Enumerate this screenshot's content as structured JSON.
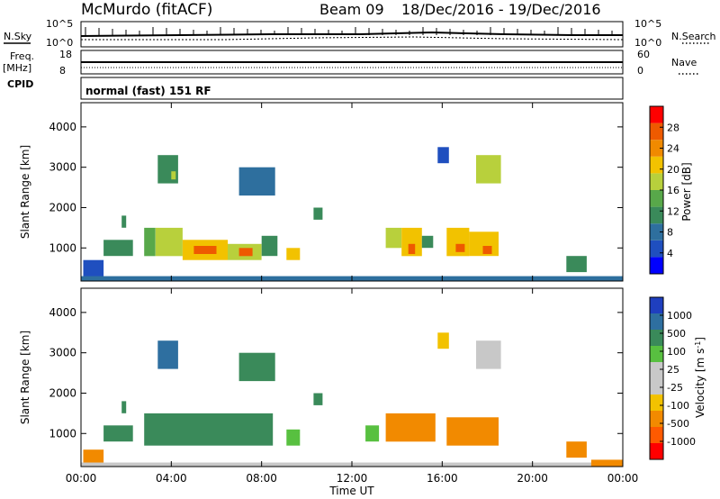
{
  "header": {
    "station": "McMurdo (fitACF)",
    "beam": "Beam 09",
    "date_range": "18/Dec/2016 - 19/Dec/2016"
  },
  "noise_panel": {
    "left_label": "N.Sky",
    "left_top": "10^5",
    "left_bottom": "10^0",
    "right_top": "10^5",
    "right_bottom": "10^0",
    "right_label": "N.Search"
  },
  "freq_panel": {
    "left_label_line1": "Freq.",
    "left_label_line2": "[MHz]",
    "left_top": "18",
    "left_bottom": "8",
    "right_top": "60",
    "right_bottom": "0",
    "right_label": "Nave"
  },
  "cpid_panel": {
    "label": "CPID",
    "mode": "normal (fast) 151 RF"
  },
  "colors": {
    "power_scale": [
      "#0000ff",
      "#1f4fbf",
      "#2e6f9e",
      "#3a8a5a",
      "#58a84a",
      "#b8d03c",
      "#f2c200",
      "#f08a00",
      "#ee5a00",
      "#ff0000"
    ],
    "velocity_scale": [
      "#ff0000",
      "#ff5a00",
      "#f28a00",
      "#f2c200",
      "#c8c8c8",
      "#c8c8c8",
      "#58c040",
      "#3a8a5a",
      "#2e6fa0",
      "#1f3fbf"
    ]
  },
  "chart_data": [
    {
      "type": "heatmap",
      "panel": "power",
      "ylabel": "Slant Range [km]",
      "xlabel": "",
      "yticks": [
        "1000",
        "2000",
        "3000",
        "4000"
      ],
      "ylim": [
        180,
        4600
      ],
      "xlim": [
        "00:00",
        "00:00"
      ],
      "colorbar_label": "Power [dB]",
      "colorbar_ticks": [
        "4",
        "8",
        "12",
        "16",
        "20",
        "24",
        "28"
      ],
      "colorbar_range": [
        0,
        32
      ],
      "cells": [
        {
          "t0": 0.1,
          "t1": 1.0,
          "r0": 200,
          "r1": 700,
          "value": 6
        },
        {
          "t0": 0.0,
          "t1": 24.0,
          "r0": 180,
          "r1": 300,
          "value": 8
        },
        {
          "t0": 1.0,
          "t1": 2.3,
          "r0": 800,
          "r1": 1200,
          "value": 10
        },
        {
          "t0": 1.8,
          "t1": 2.0,
          "r0": 1500,
          "r1": 1800,
          "value": 10
        },
        {
          "t0": 2.8,
          "t1": 3.3,
          "r0": 800,
          "r1": 1500,
          "value": 14
        },
        {
          "t0": 3.3,
          "t1": 4.5,
          "r0": 800,
          "r1": 1500,
          "value": 18
        },
        {
          "t0": 4.5,
          "t1": 6.5,
          "r0": 700,
          "r1": 1200,
          "value": 22
        },
        {
          "t0": 5.0,
          "t1": 6.0,
          "r0": 850,
          "r1": 1050,
          "value": 28
        },
        {
          "t0": 6.5,
          "t1": 8.0,
          "r0": 700,
          "r1": 1100,
          "value": 16
        },
        {
          "t0": 7.0,
          "t1": 7.6,
          "r0": 800,
          "r1": 1000,
          "value": 26
        },
        {
          "t0": 8.0,
          "t1": 8.7,
          "r0": 800,
          "r1": 1300,
          "value": 12
        },
        {
          "t0": 9.1,
          "t1": 9.7,
          "r0": 700,
          "r1": 1000,
          "value": 20
        },
        {
          "t0": 10.3,
          "t1": 10.7,
          "r0": 1700,
          "r1": 2000,
          "value": 12
        },
        {
          "t0": 3.4,
          "t1": 4.3,
          "r0": 2600,
          "r1": 3300,
          "value": 10
        },
        {
          "t0": 4.0,
          "t1": 4.2,
          "r0": 2700,
          "r1": 2900,
          "value": 16
        },
        {
          "t0": 7.0,
          "t1": 8.6,
          "r0": 2300,
          "r1": 3000,
          "value": 9
        },
        {
          "t0": 13.5,
          "t1": 14.2,
          "r0": 1000,
          "r1": 1500,
          "value": 16
        },
        {
          "t0": 14.2,
          "t1": 15.1,
          "r0": 800,
          "r1": 1500,
          "value": 22
        },
        {
          "t0": 14.5,
          "t1": 14.8,
          "r0": 850,
          "r1": 1100,
          "value": 28
        },
        {
          "t0": 15.1,
          "t1": 15.6,
          "r0": 1000,
          "r1": 1300,
          "value": 12
        },
        {
          "t0": 16.2,
          "t1": 17.2,
          "r0": 800,
          "r1": 1500,
          "value": 22
        },
        {
          "t0": 16.6,
          "t1": 17.0,
          "r0": 900,
          "r1": 1100,
          "value": 28
        },
        {
          "t0": 17.2,
          "t1": 18.5,
          "r0": 800,
          "r1": 1400,
          "value": 20
        },
        {
          "t0": 17.8,
          "t1": 18.2,
          "r0": 850,
          "r1": 1050,
          "value": 26
        },
        {
          "t0": 17.5,
          "t1": 18.6,
          "r0": 2600,
          "r1": 3300,
          "value": 16
        },
        {
          "t0": 15.8,
          "t1": 16.3,
          "r0": 3100,
          "r1": 3500,
          "value": 6
        },
        {
          "t0": 21.5,
          "t1": 22.4,
          "r0": 400,
          "r1": 800,
          "value": 12
        }
      ]
    },
    {
      "type": "heatmap",
      "panel": "velocity",
      "ylabel": "Slant Range [km]",
      "xlabel": "Time UT",
      "xticks": [
        "00:00",
        "04:00",
        "08:00",
        "12:00",
        "16:00",
        "20:00",
        "00:00"
      ],
      "yticks": [
        "1000",
        "2000",
        "3000",
        "4000"
      ],
      "ylim": [
        180,
        4600
      ],
      "colorbar_label": "Velocity [m s^-1]",
      "colorbar_ticks": [
        "-1000",
        "-500",
        "-100",
        "-25",
        "25",
        "100",
        "500",
        "1000"
      ],
      "cells": [
        {
          "t0": 0.1,
          "t1": 1.0,
          "r0": 200,
          "r1": 600,
          "value": -150
        },
        {
          "t0": 0.0,
          "t1": 24.0,
          "r0": 180,
          "r1": 280,
          "value": 10
        },
        {
          "t0": 1.0,
          "t1": 2.3,
          "r0": 800,
          "r1": 1200,
          "value": 300
        },
        {
          "t0": 1.8,
          "t1": 2.0,
          "r0": 1500,
          "r1": 1800,
          "value": 300
        },
        {
          "t0": 2.8,
          "t1": 8.5,
          "r0": 700,
          "r1": 1500,
          "value": 300
        },
        {
          "t0": 3.4,
          "t1": 4.3,
          "r0": 2600,
          "r1": 3300,
          "value": 600
        },
        {
          "t0": 7.0,
          "t1": 8.6,
          "r0": 2300,
          "r1": 3000,
          "value": 300
        },
        {
          "t0": 9.1,
          "t1": 9.7,
          "r0": 700,
          "r1": 1100,
          "value": 100
        },
        {
          "t0": 10.3,
          "t1": 10.7,
          "r0": 1700,
          "r1": 2000,
          "value": 300
        },
        {
          "t0": 12.6,
          "t1": 13.2,
          "r0": 800,
          "r1": 1200,
          "value": 60
        },
        {
          "t0": 13.5,
          "t1": 15.7,
          "r0": 800,
          "r1": 1500,
          "value": -300
        },
        {
          "t0": 16.2,
          "t1": 18.5,
          "r0": 700,
          "r1": 1400,
          "value": -300
        },
        {
          "t0": 17.5,
          "t1": 18.6,
          "r0": 2600,
          "r1": 3300,
          "value": 0
        },
        {
          "t0": 15.8,
          "t1": 16.3,
          "r0": 3100,
          "r1": 3500,
          "value": -50
        },
        {
          "t0": 21.5,
          "t1": 22.4,
          "r0": 400,
          "r1": 800,
          "value": -300
        },
        {
          "t0": 22.6,
          "t1": 24.0,
          "r0": 180,
          "r1": 350,
          "value": -150
        }
      ]
    }
  ]
}
